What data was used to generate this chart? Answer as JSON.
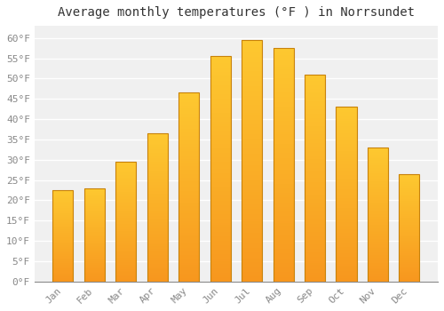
{
  "title": "Average monthly temperatures (°F ) in Norrsundet",
  "months": [
    "Jan",
    "Feb",
    "Mar",
    "Apr",
    "May",
    "Jun",
    "Jul",
    "Aug",
    "Sep",
    "Oct",
    "Nov",
    "Dec"
  ],
  "values": [
    22.5,
    23.0,
    29.5,
    36.5,
    46.5,
    55.5,
    59.5,
    57.5,
    51.0,
    43.0,
    33.0,
    26.5
  ],
  "bar_color_top": "#FDC830",
  "bar_color_bottom": "#F7971E",
  "bar_edge_color": "#C8820A",
  "background_color": "#ffffff",
  "plot_bg_color": "#f0f0f0",
  "grid_color": "#ffffff",
  "ylim": [
    0,
    63
  ],
  "yticks": [
    0,
    5,
    10,
    15,
    20,
    25,
    30,
    35,
    40,
    45,
    50,
    55,
    60
  ],
  "title_fontsize": 10,
  "tick_fontsize": 8,
  "tick_font_color": "#888888",
  "title_color": "#333333"
}
